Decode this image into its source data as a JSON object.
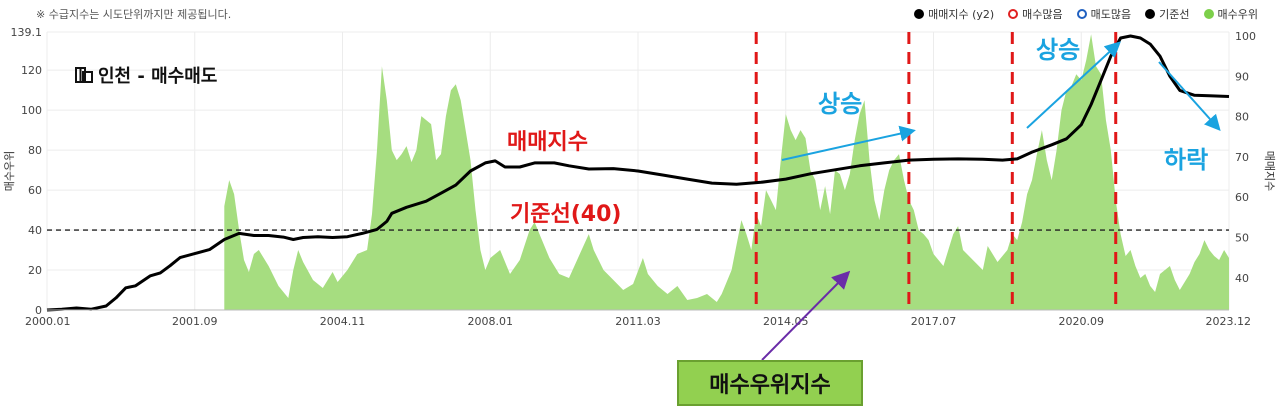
{
  "note": "※ 수급지수는 시도단위까지만 제공됩니다.",
  "brand": {
    "title": "인천 - 매수매도"
  },
  "legend": [
    {
      "label": "매매지수 (y2)",
      "color": "#000000",
      "style": "filled"
    },
    {
      "label": "매수많음",
      "color": "#e02020",
      "style": "ring"
    },
    {
      "label": "매도많음",
      "color": "#2060c0",
      "style": "ring"
    },
    {
      "label": "기준선",
      "color": "#000000",
      "style": "filled"
    },
    {
      "label": "매수우위",
      "color": "#7ccf4a",
      "style": "filled"
    }
  ],
  "annotations": {
    "price_index_label": "매매지수",
    "baseline_label": "기준선(40)",
    "rise_1": "상승",
    "rise_2": "상승",
    "fall": "하락",
    "callout": "매수우위지수"
  },
  "colors": {
    "area": "#a6dd80",
    "line": "#000000",
    "marker": "#e02020",
    "arrow": "#1aa3e0",
    "callout_bg": "#92d050"
  },
  "chart_data": {
    "type": "area",
    "x_tick_labels": [
      "2000.01",
      "2001.09",
      "2004.11",
      "2008.01",
      "2011.03",
      "2014.05",
      "2017.07",
      "2020.09",
      "2023.12"
    ],
    "y_left": {
      "label": "매수우위",
      "range": [
        0,
        139.1
      ],
      "ticks": [
        "0",
        "20",
        "40",
        "60",
        "80",
        "100",
        "120",
        "139.1"
      ]
    },
    "y_right": {
      "label": "매매지수",
      "range": [
        32,
        101
      ],
      "ticks": [
        "40",
        "50",
        "60",
        "70",
        "80",
        "90",
        "100"
      ]
    },
    "baseline": 40,
    "x_range": [
      2000.0,
      2024.0
    ],
    "series": [
      {
        "name": "매수우위",
        "type": "area",
        "axis": "left",
        "points": [
          [
            2003.6,
            52
          ],
          [
            2003.7,
            65
          ],
          [
            2003.8,
            58
          ],
          [
            2003.9,
            40
          ],
          [
            2004.0,
            25
          ],
          [
            2004.1,
            19
          ],
          [
            2004.2,
            28
          ],
          [
            2004.3,
            30
          ],
          [
            2004.5,
            22
          ],
          [
            2004.7,
            12
          ],
          [
            2004.9,
            6
          ],
          [
            2005.0,
            20
          ],
          [
            2005.1,
            30
          ],
          [
            2005.2,
            24
          ],
          [
            2005.4,
            15
          ],
          [
            2005.6,
            11
          ],
          [
            2005.8,
            19
          ],
          [
            2005.9,
            14
          ],
          [
            2006.1,
            20
          ],
          [
            2006.3,
            28
          ],
          [
            2006.5,
            30
          ],
          [
            2006.6,
            48
          ],
          [
            2006.7,
            80
          ],
          [
            2006.8,
            122
          ],
          [
            2006.9,
            105
          ],
          [
            2007.0,
            80
          ],
          [
            2007.1,
            75
          ],
          [
            2007.2,
            78
          ],
          [
            2007.3,
            82
          ],
          [
            2007.4,
            74
          ],
          [
            2007.5,
            80
          ],
          [
            2007.6,
            97
          ],
          [
            2007.7,
            95
          ],
          [
            2007.8,
            93
          ],
          [
            2007.9,
            75
          ],
          [
            2008.0,
            78
          ],
          [
            2008.1,
            97
          ],
          [
            2008.2,
            110
          ],
          [
            2008.3,
            113
          ],
          [
            2008.4,
            105
          ],
          [
            2008.5,
            90
          ],
          [
            2008.6,
            75
          ],
          [
            2008.7,
            50
          ],
          [
            2008.8,
            30
          ],
          [
            2008.9,
            20
          ],
          [
            2009.0,
            26
          ],
          [
            2009.2,
            30
          ],
          [
            2009.4,
            18
          ],
          [
            2009.6,
            25
          ],
          [
            2009.8,
            40
          ],
          [
            2009.9,
            44
          ],
          [
            2010.0,
            38
          ],
          [
            2010.2,
            26
          ],
          [
            2010.4,
            18
          ],
          [
            2010.6,
            16
          ],
          [
            2010.8,
            27
          ],
          [
            2011.0,
            38
          ],
          [
            2011.1,
            30
          ],
          [
            2011.3,
            20
          ],
          [
            2011.5,
            15
          ],
          [
            2011.7,
            10
          ],
          [
            2011.9,
            13
          ],
          [
            2012.1,
            26
          ],
          [
            2012.2,
            18
          ],
          [
            2012.4,
            12
          ],
          [
            2012.6,
            8
          ],
          [
            2012.8,
            12
          ],
          [
            2013.0,
            5
          ],
          [
            2013.2,
            6
          ],
          [
            2013.4,
            8
          ],
          [
            2013.6,
            4
          ],
          [
            2013.7,
            8
          ],
          [
            2013.9,
            20
          ],
          [
            2014.1,
            45
          ],
          [
            2014.2,
            38
          ],
          [
            2014.3,
            30
          ],
          [
            2014.4,
            48
          ],
          [
            2014.5,
            42
          ],
          [
            2014.6,
            60
          ],
          [
            2014.7,
            55
          ],
          [
            2014.8,
            50
          ],
          [
            2014.9,
            75
          ],
          [
            2015.0,
            98
          ],
          [
            2015.1,
            90
          ],
          [
            2015.2,
            85
          ],
          [
            2015.3,
            90
          ],
          [
            2015.4,
            86
          ],
          [
            2015.5,
            70
          ],
          [
            2015.6,
            65
          ],
          [
            2015.7,
            50
          ],
          [
            2015.8,
            62
          ],
          [
            2015.9,
            48
          ],
          [
            2016.0,
            70
          ],
          [
            2016.1,
            68
          ],
          [
            2016.2,
            60
          ],
          [
            2016.3,
            68
          ],
          [
            2016.4,
            85
          ],
          [
            2016.5,
            98
          ],
          [
            2016.6,
            105
          ],
          [
            2016.7,
            75
          ],
          [
            2016.8,
            55
          ],
          [
            2016.9,
            45
          ],
          [
            2017.0,
            60
          ],
          [
            2017.1,
            70
          ],
          [
            2017.2,
            75
          ],
          [
            2017.3,
            78
          ],
          [
            2017.4,
            65
          ],
          [
            2017.5,
            55
          ],
          [
            2017.6,
            50
          ],
          [
            2017.7,
            40
          ],
          [
            2017.8,
            38
          ],
          [
            2017.9,
            35
          ],
          [
            2018.0,
            28
          ],
          [
            2018.2,
            22
          ],
          [
            2018.4,
            38
          ],
          [
            2018.5,
            42
          ],
          [
            2018.6,
            30
          ],
          [
            2018.8,
            25
          ],
          [
            2019.0,
            20
          ],
          [
            2019.1,
            32
          ],
          [
            2019.3,
            24
          ],
          [
            2019.5,
            30
          ],
          [
            2019.6,
            38
          ],
          [
            2019.7,
            35
          ],
          [
            2019.8,
            44
          ],
          [
            2019.9,
            58
          ],
          [
            2020.0,
            65
          ],
          [
            2020.1,
            78
          ],
          [
            2020.2,
            90
          ],
          [
            2020.3,
            75
          ],
          [
            2020.4,
            65
          ],
          [
            2020.5,
            80
          ],
          [
            2020.6,
            100
          ],
          [
            2020.7,
            110
          ],
          [
            2020.8,
            112
          ],
          [
            2020.9,
            118
          ],
          [
            2021.0,
            115
          ],
          [
            2021.1,
            125
          ],
          [
            2021.2,
            138
          ],
          [
            2021.3,
            122
          ],
          [
            2021.4,
            118
          ],
          [
            2021.5,
            95
          ],
          [
            2021.6,
            80
          ],
          [
            2021.7,
            55
          ],
          [
            2021.8,
            38
          ],
          [
            2021.9,
            27
          ],
          [
            2022.0,
            30
          ],
          [
            2022.1,
            22
          ],
          [
            2022.2,
            16
          ],
          [
            2022.3,
            18
          ],
          [
            2022.4,
            12
          ],
          [
            2022.5,
            9
          ],
          [
            2022.6,
            18
          ],
          [
            2022.8,
            22
          ],
          [
            2022.9,
            15
          ],
          [
            2023.0,
            10
          ],
          [
            2023.1,
            14
          ],
          [
            2023.2,
            18
          ],
          [
            2023.3,
            24
          ],
          [
            2023.4,
            28
          ],
          [
            2023.5,
            35
          ],
          [
            2023.6,
            30
          ],
          [
            2023.7,
            27
          ],
          [
            2023.8,
            25
          ],
          [
            2023.9,
            30
          ],
          [
            2024.0,
            26
          ]
        ]
      },
      {
        "name": "매매지수",
        "type": "line",
        "axis": "right",
        "points": [
          [
            2000.0,
            32
          ],
          [
            2000.3,
            32.2
          ],
          [
            2000.6,
            32.5
          ],
          [
            2000.9,
            32.2
          ],
          [
            2001.2,
            33
          ],
          [
            2001.4,
            35
          ],
          [
            2001.6,
            37.5
          ],
          [
            2001.8,
            38
          ],
          [
            2002.1,
            40.5
          ],
          [
            2002.3,
            41.2
          ],
          [
            2002.5,
            43
          ],
          [
            2002.7,
            45
          ],
          [
            2003.0,
            46
          ],
          [
            2003.3,
            47
          ],
          [
            2003.6,
            49.5
          ],
          [
            2003.9,
            51
          ],
          [
            2004.2,
            50.5
          ],
          [
            2004.5,
            50.5
          ],
          [
            2004.8,
            50.1
          ],
          [
            2005.0,
            49.5
          ],
          [
            2005.2,
            50
          ],
          [
            2005.5,
            50.2
          ],
          [
            2005.8,
            50
          ],
          [
            2006.1,
            50.2
          ],
          [
            2006.4,
            51
          ],
          [
            2006.7,
            52
          ],
          [
            2006.9,
            54
          ],
          [
            2007.0,
            56
          ],
          [
            2007.3,
            57.5
          ],
          [
            2007.7,
            59
          ],
          [
            2008.0,
            61
          ],
          [
            2008.3,
            63
          ],
          [
            2008.6,
            66.5
          ],
          [
            2008.9,
            68.5
          ],
          [
            2009.1,
            69
          ],
          [
            2009.3,
            67.5
          ],
          [
            2009.6,
            67.5
          ],
          [
            2009.9,
            68.5
          ],
          [
            2010.3,
            68.5
          ],
          [
            2010.6,
            67.8
          ],
          [
            2011.0,
            67
          ],
          [
            2011.5,
            67.1
          ],
          [
            2012.0,
            66.5
          ],
          [
            2012.5,
            65.5
          ],
          [
            2013.0,
            64.5
          ],
          [
            2013.5,
            63.5
          ],
          [
            2014.0,
            63.2
          ],
          [
            2014.5,
            63.7
          ],
          [
            2015.0,
            64.5
          ],
          [
            2015.5,
            65.8
          ],
          [
            2016.0,
            66.8
          ],
          [
            2016.5,
            67.8
          ],
          [
            2017.0,
            68.5
          ],
          [
            2017.5,
            69.2
          ],
          [
            2018.0,
            69.4
          ],
          [
            2018.5,
            69.5
          ],
          [
            2019.0,
            69.4
          ],
          [
            2019.4,
            69.2
          ],
          [
            2019.7,
            69.5
          ],
          [
            2020.0,
            71.2
          ],
          [
            2020.4,
            73
          ],
          [
            2020.7,
            74.5
          ],
          [
            2021.0,
            78
          ],
          [
            2021.2,
            83
          ],
          [
            2021.4,
            89
          ],
          [
            2021.6,
            95
          ],
          [
            2021.8,
            99.5
          ],
          [
            2022.0,
            100
          ],
          [
            2022.2,
            99.5
          ],
          [
            2022.4,
            98
          ],
          [
            2022.6,
            95
          ],
          [
            2022.8,
            90
          ],
          [
            2023.0,
            86.5
          ],
          [
            2023.3,
            85.3
          ],
          [
            2023.6,
            85.2
          ],
          [
            2024.0,
            85
          ]
        ]
      }
    ],
    "markers": [
      {
        "label": "매수많음",
        "x": 2014.4
      },
      {
        "label": "매수많음",
        "x": 2017.5
      },
      {
        "label": "매수많음",
        "x": 2019.6
      },
      {
        "label": "매수많음",
        "x": 2021.7
      }
    ]
  }
}
